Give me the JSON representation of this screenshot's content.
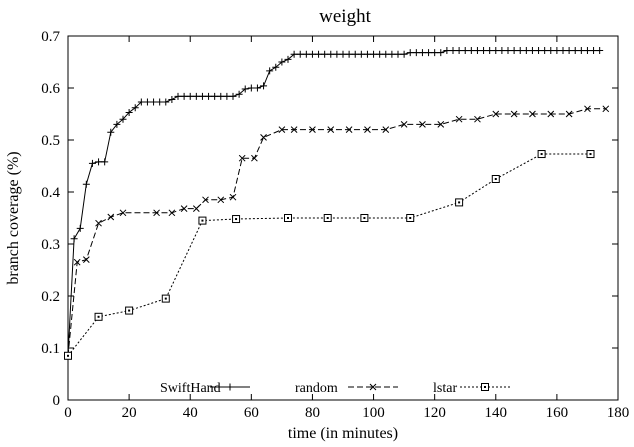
{
  "chart_data": {
    "type": "line",
    "title": "weight",
    "xlabel": "time (in minutes)",
    "ylabel": "branch coverage (%)",
    "xlim": [
      0,
      180
    ],
    "ylim": [
      0,
      0.7
    ],
    "xticks": [
      0,
      20,
      40,
      60,
      80,
      100,
      120,
      140,
      160,
      180
    ],
    "yticks": [
      0,
      0.1,
      0.2,
      0.3,
      0.4,
      0.5,
      0.6,
      0.7
    ],
    "xtick_labels": [
      "0",
      "20",
      "40",
      "60",
      "80",
      "100",
      "120",
      "140",
      "160",
      "180"
    ],
    "ytick_labels": [
      "0",
      "0.1",
      "0.2",
      "0.3",
      "0.4",
      "0.5",
      "0.6",
      "0.7"
    ],
    "grid": false,
    "legend_position": "bottom-center",
    "series": [
      {
        "name": "SwiftHand",
        "marker": "plus",
        "line_style": "solid",
        "x": [
          0,
          2,
          4,
          6,
          8,
          10,
          12,
          14,
          16,
          18,
          20,
          22,
          24,
          26,
          28,
          30,
          32,
          34,
          36,
          38,
          40,
          42,
          44,
          46,
          48,
          50,
          52,
          54,
          56,
          58,
          60,
          62,
          64,
          66,
          68,
          70,
          72,
          74,
          76,
          78,
          80,
          82,
          84,
          86,
          88,
          90,
          92,
          94,
          96,
          98,
          100,
          102,
          104,
          106,
          108,
          110,
          112,
          114,
          116,
          118,
          120,
          122,
          124,
          126,
          128,
          130,
          132,
          134,
          136,
          138,
          140,
          142,
          144,
          146,
          148,
          150,
          152,
          154,
          156,
          158,
          160,
          162,
          164,
          166,
          168,
          170,
          172,
          174
        ],
        "values": [
          0.085,
          0.31,
          0.33,
          0.415,
          0.455,
          0.458,
          0.458,
          0.515,
          0.53,
          0.54,
          0.553,
          0.562,
          0.573,
          0.573,
          0.573,
          0.573,
          0.573,
          0.578,
          0.584,
          0.584,
          0.584,
          0.584,
          0.584,
          0.584,
          0.584,
          0.584,
          0.584,
          0.584,
          0.588,
          0.598,
          0.6,
          0.6,
          0.604,
          0.633,
          0.64,
          0.65,
          0.655,
          0.665,
          0.665,
          0.665,
          0.665,
          0.665,
          0.665,
          0.665,
          0.665,
          0.665,
          0.665,
          0.665,
          0.665,
          0.665,
          0.665,
          0.665,
          0.665,
          0.665,
          0.665,
          0.665,
          0.668,
          0.668,
          0.668,
          0.668,
          0.668,
          0.668,
          0.672,
          0.672,
          0.672,
          0.672,
          0.672,
          0.672,
          0.672,
          0.672,
          0.672,
          0.672,
          0.672,
          0.672,
          0.672,
          0.672,
          0.672,
          0.672,
          0.672,
          0.672,
          0.672,
          0.672,
          0.672,
          0.672,
          0.672,
          0.672,
          0.672,
          0.672
        ]
      },
      {
        "name": "random",
        "marker": "x",
        "line_style": "dashed",
        "x": [
          0,
          3,
          6,
          10,
          14,
          18,
          29,
          34,
          38,
          42,
          45,
          50,
          54,
          57,
          61,
          64,
          70,
          74,
          80,
          86,
          92,
          98,
          104,
          110,
          116,
          122,
          128,
          134,
          140,
          146,
          152,
          158,
          164,
          170,
          176
        ],
        "values": [
          0.085,
          0.265,
          0.27,
          0.34,
          0.352,
          0.36,
          0.36,
          0.36,
          0.368,
          0.368,
          0.385,
          0.385,
          0.39,
          0.465,
          0.465,
          0.505,
          0.52,
          0.52,
          0.52,
          0.52,
          0.52,
          0.52,
          0.52,
          0.53,
          0.53,
          0.53,
          0.54,
          0.54,
          0.55,
          0.55,
          0.55,
          0.55,
          0.55,
          0.56,
          0.56
        ]
      },
      {
        "name": "lstar",
        "marker": "square",
        "line_style": "dotted",
        "x": [
          0,
          10,
          20,
          32,
          44,
          55,
          72,
          85,
          97,
          112,
          128,
          140,
          155,
          171
        ],
        "values": [
          0.085,
          0.16,
          0.172,
          0.195,
          0.345,
          0.348,
          0.35,
          0.35,
          0.35,
          0.35,
          0.38,
          0.425,
          0.473,
          0.473
        ]
      }
    ]
  }
}
